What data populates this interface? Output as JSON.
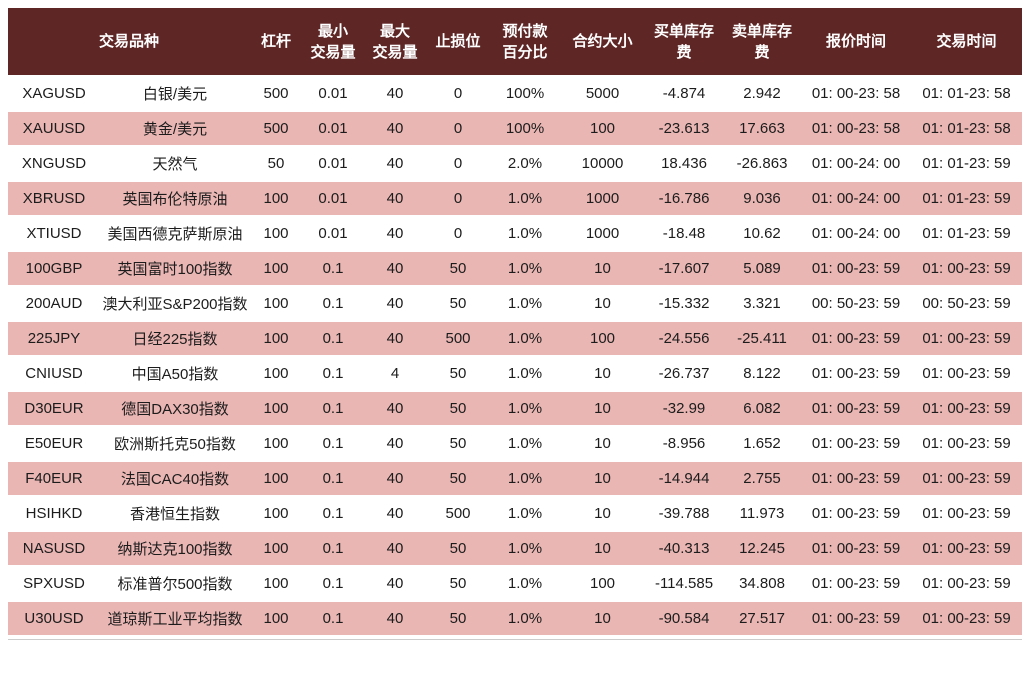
{
  "table": {
    "colors": {
      "header_bg": "#5f2626",
      "header_text": "#ffffff",
      "row_alt_bg": "#e9b6b3",
      "row_bg": "#ffffff",
      "body_text": "#1c1c1c",
      "bottom_line": "#cccccc",
      "page_bg": "#ffffff"
    },
    "columns": {
      "instrument": "交易品种",
      "leverage": "杠杆",
      "min_volume": "最小\n交易量",
      "max_volume": "最大\n交易量",
      "stop_level": "止损位",
      "margin_percent": "预付款\n百分比",
      "contract_size": "合约大小",
      "buy_swap": "买单库存费",
      "sell_swap": "卖单库存费",
      "quote_time": "报价时间",
      "trade_time": "交易时间"
    },
    "rows": [
      {
        "cells": [
          "XAGUSD",
          "白银/美元",
          "500",
          "0.01",
          "40",
          "0",
          "100%",
          "5000",
          "-4.874",
          "2.942",
          "01: 00-23: 58",
          "01: 01-23: 58"
        ]
      },
      {
        "cells": [
          "XAUUSD",
          "黄金/美元",
          "500",
          "0.01",
          "40",
          "0",
          "100%",
          "100",
          "-23.613",
          "17.663",
          "01: 00-23: 58",
          "01: 01-23: 58"
        ]
      },
      {
        "cells": [
          "XNGUSD",
          "天然气",
          "50",
          "0.01",
          "40",
          "0",
          "2.0%",
          "10000",
          "18.436",
          "-26.863",
          "01: 00-24: 00",
          "01: 01-23: 59"
        ]
      },
      {
        "cells": [
          "XBRUSD",
          "英国布伦特原油",
          "100",
          "0.01",
          "40",
          "0",
          "1.0%",
          "1000",
          "-16.786",
          "9.036",
          "01: 00-24: 00",
          "01: 01-23: 59"
        ]
      },
      {
        "cells": [
          "XTIUSD",
          "美国西德克萨斯原油",
          "100",
          "0.01",
          "40",
          "0",
          "1.0%",
          "1000",
          "-18.48",
          "10.62",
          "01: 00-24: 00",
          "01: 01-23: 59"
        ]
      },
      {
        "cells": [
          "100GBP",
          "英国富时100指数",
          "100",
          "0.1",
          "40",
          "50",
          "1.0%",
          "10",
          "-17.607",
          "5.089",
          "01: 00-23: 59",
          "01: 00-23: 59"
        ]
      },
      {
        "cells": [
          "200AUD",
          "澳大利亚S&P200指数",
          "100",
          "0.1",
          "40",
          "50",
          "1.0%",
          "10",
          "-15.332",
          "3.321",
          "00: 50-23: 59",
          "00: 50-23: 59"
        ]
      },
      {
        "cells": [
          "225JPY",
          "日经225指数",
          "100",
          "0.1",
          "40",
          "500",
          "1.0%",
          "100",
          "-24.556",
          "-25.411",
          "01: 00-23: 59",
          "01: 00-23: 59"
        ]
      },
      {
        "cells": [
          "CNIUSD",
          "中国A50指数",
          "100",
          "0.1",
          "4",
          "50",
          "1.0%",
          "10",
          "-26.737",
          "8.122",
          "01: 00-23: 59",
          "01: 00-23: 59"
        ]
      },
      {
        "cells": [
          "D30EUR",
          "德国DAX30指数",
          "100",
          "0.1",
          "40",
          "50",
          "1.0%",
          "10",
          "-32.99",
          "6.082",
          "01: 00-23: 59",
          "01: 00-23: 59"
        ]
      },
      {
        "cells": [
          "E50EUR",
          "欧洲斯托克50指数",
          "100",
          "0.1",
          "40",
          "50",
          "1.0%",
          "10",
          "-8.956",
          "1.652",
          "01: 00-23: 59",
          "01: 00-23: 59"
        ]
      },
      {
        "cells": [
          "F40EUR",
          "法国CAC40指数",
          "100",
          "0.1",
          "40",
          "50",
          "1.0%",
          "10",
          "-14.944",
          "2.755",
          "01: 00-23: 59",
          "01: 00-23: 59"
        ]
      },
      {
        "cells": [
          "HSIHKD",
          "香港恒生指数",
          "100",
          "0.1",
          "40",
          "500",
          "1.0%",
          "10",
          "-39.788",
          "11.973",
          "01: 00-23: 59",
          "01: 00-23: 59"
        ]
      },
      {
        "cells": [
          "NASUSD",
          "纳斯达克100指数",
          "100",
          "0.1",
          "40",
          "50",
          "1.0%",
          "10",
          "-40.313",
          "12.245",
          "01: 00-23: 59",
          "01: 00-23: 59"
        ]
      },
      {
        "cells": [
          "SPXUSD",
          "标准普尔500指数",
          "100",
          "0.1",
          "40",
          "50",
          "1.0%",
          "100",
          "-114.585",
          "34.808",
          "01: 00-23: 59",
          "01: 00-23: 59"
        ]
      },
      {
        "cells": [
          "U30USD",
          "道琼斯工业平均指数",
          "100",
          "0.1",
          "40",
          "50",
          "1.0%",
          "10",
          "-90.584",
          "27.517",
          "01: 00-23: 59",
          "01: 00-23: 59"
        ]
      }
    ]
  }
}
